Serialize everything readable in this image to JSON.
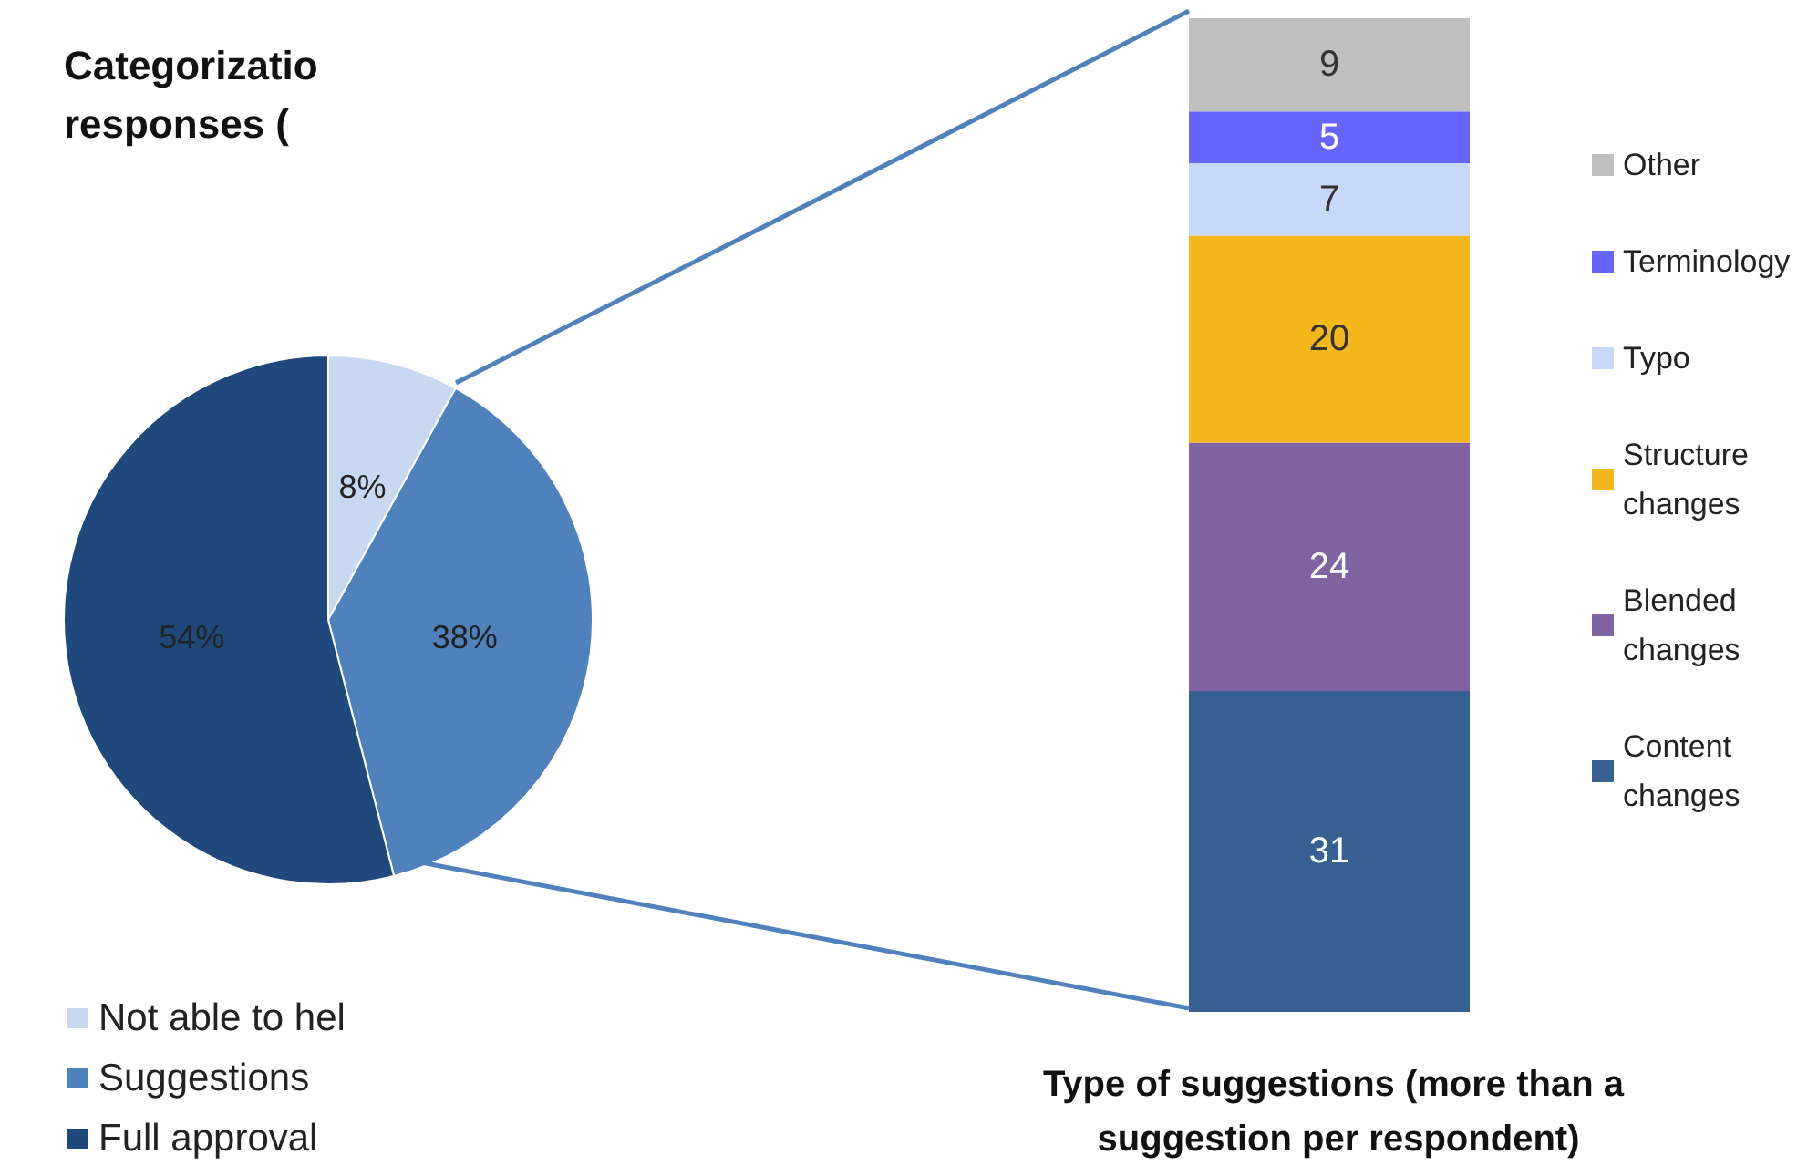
{
  "chart_data": [
    {
      "type": "pie",
      "title": "Categorizatio\nresponses (",
      "categories": [
        "Not able to hel",
        "Suggestions",
        "Full approval"
      ],
      "values": [
        8,
        38,
        54
      ],
      "value_labels": [
        "8%",
        "38%",
        "54%"
      ],
      "colors": [
        "#c6d9f1",
        "#4f81bd",
        "#1f497d"
      ],
      "legend": "bottom left"
    },
    {
      "type": "bar",
      "stacked": true,
      "categories": [
        null
      ],
      "xlabel": "Type of suggestions (more than a suggestion per respondent)",
      "data_labels": true,
      "legend": "right",
      "series": [
        {
          "name": "Content changes",
          "color": "#366092",
          "values": [
            31
          ]
        },
        {
          "name": "Blended changes",
          "color": "#8064a2",
          "values": [
            24
          ]
        },
        {
          "name": "Structure changes",
          "color": "#f4b81c",
          "values": [
            20
          ]
        },
        {
          "name": "Typo",
          "color": "#c6d9f8",
          "values": [
            7
          ]
        },
        {
          "name": "Terminology",
          "color": "#6666ff",
          "values": [
            5
          ]
        },
        {
          "name": "Other",
          "color": "#bfbfbf",
          "values": [
            9
          ]
        }
      ]
    }
  ]
}
